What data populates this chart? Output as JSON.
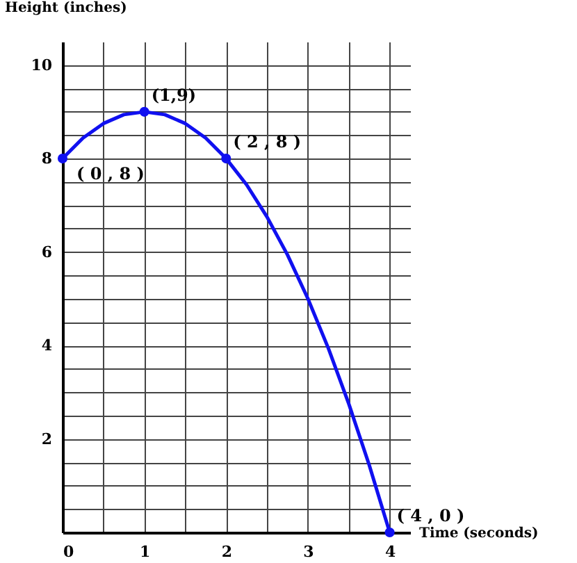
{
  "chart_data": {
    "type": "line",
    "xlabel": "Time (seconds)",
    "ylabel": "Height (inches)",
    "x": [
      0,
      0.25,
      0.5,
      0.75,
      1,
      1.25,
      1.5,
      1.75,
      2,
      2.25,
      2.5,
      2.75,
      3,
      3.25,
      3.5,
      3.75,
      4
    ],
    "series": [
      {
        "color": "#1010f0",
        "values": [
          8,
          8.44,
          8.75,
          8.94,
          9,
          8.94,
          8.75,
          8.44,
          8,
          7.44,
          6.75,
          5.94,
          5,
          3.94,
          2.75,
          1.44,
          0
        ]
      },
      {
        "type": "scatter",
        "marker": "circle",
        "color": "#1010f0",
        "x": [
          0,
          1,
          2,
          4
        ],
        "values": [
          8,
          9,
          8,
          0
        ]
      }
    ],
    "annotations": [
      {
        "text": "( 0 , 8 )",
        "x": 0,
        "y": 8
      },
      {
        "text": "(1,9)",
        "x": 1,
        "y": 9
      },
      {
        "text": "( 2 , 8 )",
        "x": 2,
        "y": 8
      },
      {
        "text": "( 4 , 0 )",
        "x": 4,
        "y": 0
      }
    ],
    "xlim": [
      0,
      4.25
    ],
    "ylim": [
      0,
      10.5
    ],
    "xticks": [
      0,
      {
        "value": 0.5,
        "label": null
      },
      1,
      {
        "value": 1.5,
        "label": null
      },
      2,
      {
        "value": 2.5,
        "label": null
      },
      3,
      {
        "value": 3.5,
        "label": null
      },
      4
    ],
    "yticks": [
      {
        "value": 0,
        "label": null
      },
      {
        "value": 0.5,
        "label": null
      },
      {
        "value": 1,
        "label": null
      },
      {
        "value": 1.5,
        "label": null
      },
      2,
      {
        "value": 2.5,
        "label": null
      },
      {
        "value": 3,
        "label": null
      },
      {
        "value": 3.5,
        "label": null
      },
      4,
      {
        "value": 4.5,
        "label": null
      },
      {
        "value": 5,
        "label": null
      },
      {
        "value": 5.5,
        "label": null
      },
      6,
      {
        "value": 6.5,
        "label": null
      },
      {
        "value": 7,
        "label": null
      },
      {
        "value": 7.5,
        "label": null
      },
      8,
      {
        "value": 8.5,
        "label": null
      },
      {
        "value": 9,
        "label": null
      },
      {
        "value": 9.5,
        "label": null
      },
      10
    ],
    "grid": true
  }
}
